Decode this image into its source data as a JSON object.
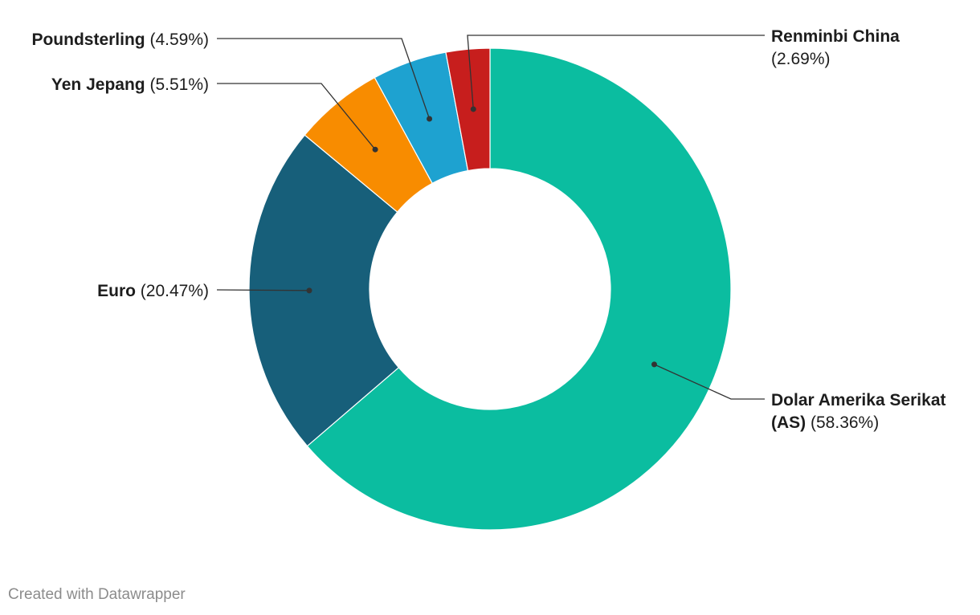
{
  "chart_data": {
    "type": "pie",
    "donut": true,
    "categories": [
      "Dolar Amerika Serikat (AS)",
      "Euro",
      "Yen Jepang",
      "Poundsterling",
      "Renminbi China"
    ],
    "values": [
      58.36,
      20.47,
      5.51,
      4.59,
      2.69
    ],
    "value_labels": [
      "(58.36%)",
      "(20.47%)",
      "(5.51%)",
      "(4.59%)",
      "(2.69%)"
    ],
    "colors": [
      "#0bbda0",
      "#175f7a",
      "#f88c00",
      "#1ea2d0",
      "#c71e1d"
    ],
    "label_lines": [
      [
        "Dolar Amerika Serikat",
        "(AS)"
      ],
      [
        "Euro"
      ],
      [
        "Yen Jepang"
      ],
      [
        "Poundsterling"
      ],
      [
        "Renminbi China"
      ]
    ],
    "title": "",
    "legend": "none"
  },
  "footer": {
    "credit": "Created with Datawrapper"
  }
}
